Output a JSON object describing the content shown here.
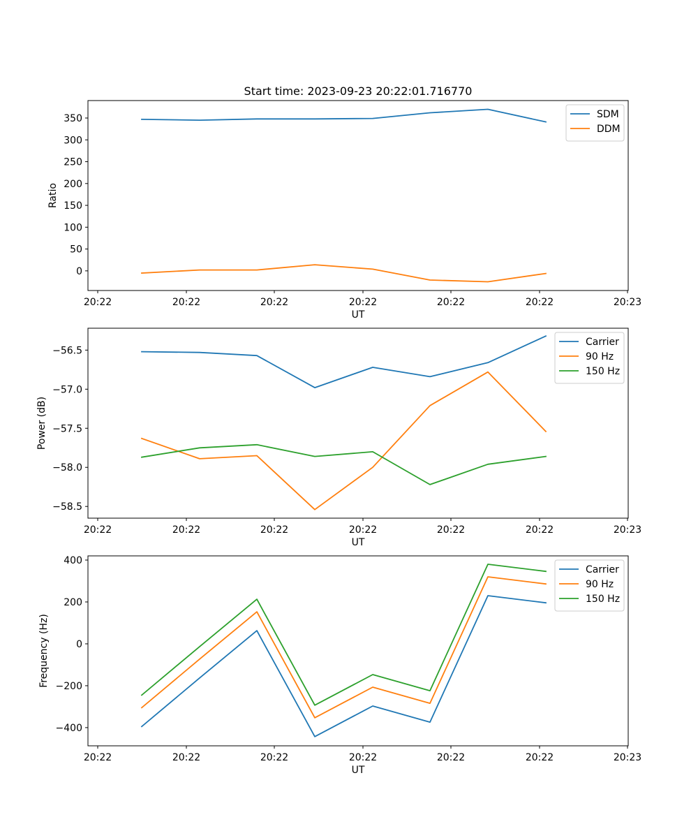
{
  "figure_title": "Start time: 2023-09-23 20:22:01.716770",
  "colors": {
    "blue": "#1f77b4",
    "orange": "#ff7f0e",
    "green": "#2ca02c"
  },
  "chart_data": [
    {
      "type": "line",
      "title": "Start time: 2023-09-23 20:22:01.716770",
      "xlabel": "UT",
      "ylabel": "Ratio",
      "x_tick_labels": [
        "20:22",
        "20:22",
        "20:22",
        "20:22",
        "20:22",
        "20:22",
        "20:23"
      ],
      "y_ticks": [
        0,
        50,
        100,
        150,
        200,
        250,
        300,
        350
      ],
      "ylim": [
        -45,
        390
      ],
      "legend_position": "top-right",
      "series": [
        {
          "name": "SDM",
          "color": "#1f77b4",
          "values": [
            347,
            345,
            348,
            348,
            349,
            362,
            370,
            341
          ]
        },
        {
          "name": "DDM",
          "color": "#ff7f0e",
          "values": [
            -5,
            2,
            2,
            14,
            4,
            -21,
            -25,
            -6
          ]
        }
      ]
    },
    {
      "type": "line",
      "title": "",
      "xlabel": "UT",
      "ylabel": "Power (dB)",
      "x_tick_labels": [
        "20:22",
        "20:22",
        "20:22",
        "20:22",
        "20:22",
        "20:22",
        "20:23"
      ],
      "y_ticks": [
        -58.5,
        -58.0,
        -57.5,
        -57.0,
        -56.5
      ],
      "y_tick_labels": [
        "−58.5",
        "−58.0",
        "−57.5",
        "−57.0",
        "−56.5"
      ],
      "ylim": [
        -58.65,
        -56.22
      ],
      "legend_position": "top-right",
      "series": [
        {
          "name": "Carrier",
          "color": "#1f77b4",
          "values": [
            -56.52,
            -56.53,
            -56.57,
            -56.98,
            -56.72,
            -56.84,
            -56.66,
            -56.32
          ]
        },
        {
          "name": "90 Hz",
          "color": "#ff7f0e",
          "values": [
            -57.63,
            -57.89,
            -57.85,
            -58.54,
            -58.0,
            -57.21,
            -56.78,
            -57.54
          ]
        },
        {
          "name": "150 Hz",
          "color": "#2ca02c",
          "values": [
            -57.87,
            -57.75,
            -57.71,
            -57.86,
            -57.8,
            -58.22,
            -57.96,
            -57.86
          ]
        }
      ]
    },
    {
      "type": "line",
      "title": "",
      "xlabel": "UT",
      "ylabel": "Frequency (Hz)",
      "x_tick_labels": [
        "20:22",
        "20:22",
        "20:22",
        "20:22",
        "20:22",
        "20:22",
        "20:23"
      ],
      "y_ticks": [
        -400,
        -200,
        0,
        200,
        400
      ],
      "y_tick_labels": [
        "−400",
        "−200",
        "0",
        "200",
        "400"
      ],
      "ylim": [
        -487,
        420
      ],
      "legend_position": "top-right",
      "series": [
        {
          "name": "Carrier",
          "color": "#1f77b4",
          "values": [
            -395,
            -163,
            63,
            -443,
            -297,
            -374,
            230,
            196
          ]
        },
        {
          "name": "90 Hz",
          "color": "#ff7f0e",
          "values": [
            -305,
            -73,
            153,
            -353,
            -207,
            -284,
            320,
            286
          ]
        },
        {
          "name": "150 Hz",
          "color": "#2ca02c",
          "values": [
            -245,
            -13,
            213,
            -293,
            -147,
            -224,
            380,
            346
          ]
        }
      ]
    }
  ]
}
